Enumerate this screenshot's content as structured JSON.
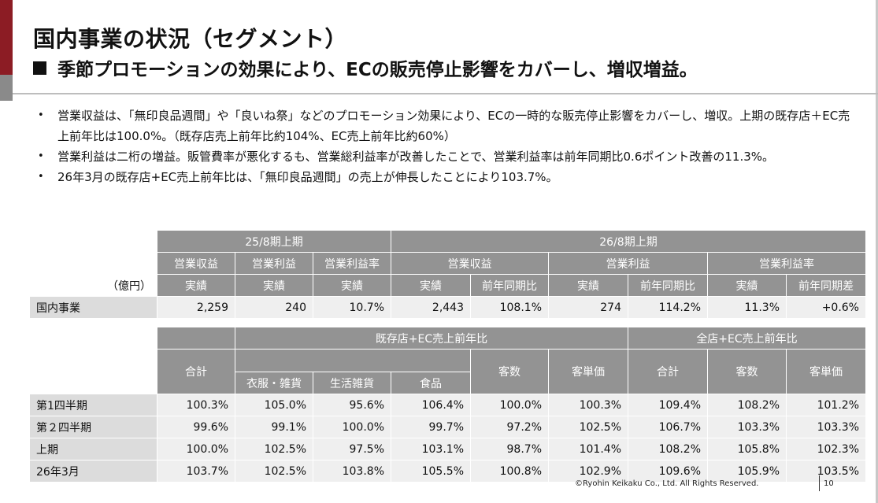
{
  "header": {
    "title": "国内事業の状況（セグメント）",
    "subtitle": "季節プロモーションの効果により、ECの販売停止影響をカバーし、増収増益。"
  },
  "bullets": [
    "営業収益は、「無印良品週間」や「良いね祭」などのプロモーション効果により、ECの一時的な販売停止影響をカバーし、増収。上期の既存店＋EC売上前年比は100.0%。（既存店売上前年比約104%、EC売上前年比約60%）",
    "営業利益は二桁の増益。販管費率が悪化するも、営業総利益率が改善したことで、営業利益率は前年同期比0.6ポイント改善の11.3%。",
    "26年3月の既存店+EC売上前年比は、「無印良品週間」の売上が伸長したことにより103.7%。"
  ],
  "table1": {
    "unit": "（億円）",
    "period_prev": "25/8期上期",
    "period_curr": "26/8期上期",
    "col_groups": [
      "営業収益",
      "営業利益",
      "営業利益率",
      "営業収益",
      "営業利益",
      "営業利益率"
    ],
    "sub_headers": [
      "実績",
      "実績",
      "実績",
      "実績",
      "前年同期比",
      "実績",
      "前年同期比",
      "実績",
      "前年同期差"
    ],
    "row": {
      "label": "国内事業",
      "values": [
        "2,259",
        "240",
        "10.7%",
        "2,443",
        "108.1%",
        "274",
        "114.2%",
        "11.3%",
        "+0.6%"
      ]
    }
  },
  "table2": {
    "group_existing": "既存店+EC売上前年比",
    "group_all": "全店+EC売上前年比",
    "headers": {
      "total": "合計",
      "apparel": "衣服・雑貨",
      "household": "生活雑貨",
      "food": "食品",
      "customers": "客数",
      "unit_price": "客単価",
      "all_total": "合計",
      "all_customers": "客数",
      "all_unit_price": "客単価"
    },
    "rows": [
      {
        "label": "第1四半期",
        "values": [
          "100.3%",
          "105.0%",
          "95.6%",
          "106.4%",
          "100.0%",
          "100.3%",
          "109.4%",
          "108.2%",
          "101.2%"
        ]
      },
      {
        "label": "第２四半期",
        "values": [
          "99.6%",
          "99.1%",
          "100.0%",
          "99.7%",
          "97.2%",
          "102.5%",
          "106.7%",
          "103.3%",
          "103.3%"
        ]
      },
      {
        "label": "上期",
        "values": [
          "100.0%",
          "102.5%",
          "97.5%",
          "103.1%",
          "98.7%",
          "101.4%",
          "108.2%",
          "105.8%",
          "102.3%"
        ]
      },
      {
        "label": "26年3月",
        "values": [
          "103.7%",
          "102.5%",
          "103.8%",
          "105.5%",
          "100.8%",
          "102.9%",
          "109.6%",
          "105.9%",
          "103.5%"
        ]
      }
    ]
  },
  "footer": {
    "copyright": "©Ryohin Keikaku Co., Ltd. All Rights Reserved.",
    "page": "10"
  }
}
